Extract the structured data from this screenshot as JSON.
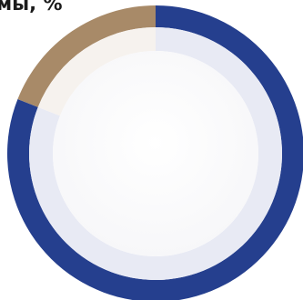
{
  "chart_data": {
    "type": "donut",
    "title": "мы, %",
    "series": [
      {
        "value": 81,
        "color": "#253f8e",
        "inner_color": "#e8eaf4"
      },
      {
        "value": 19,
        "color": "#a88a68",
        "inner_color": "#f6f2ee"
      }
    ],
    "center_color": "#fcfcfd"
  }
}
